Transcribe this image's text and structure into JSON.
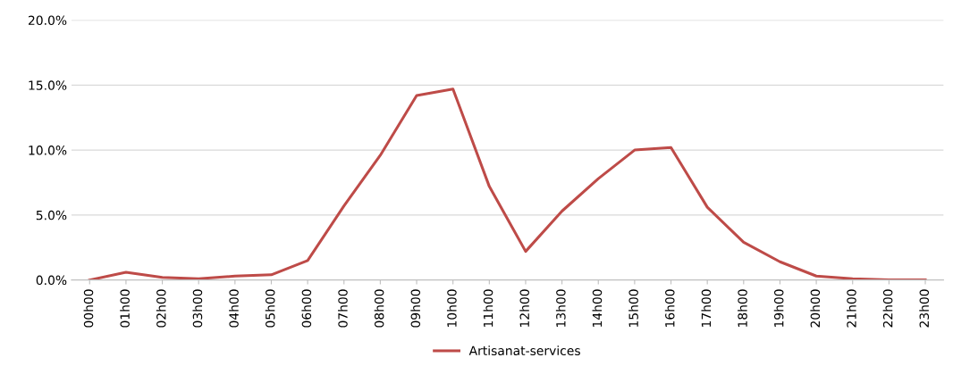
{
  "chart_data": {
    "type": "line",
    "categories": [
      "00h00",
      "01h00",
      "02h00",
      "03h00",
      "04h00",
      "05h00",
      "06h00",
      "07h00",
      "08h00",
      "09h00",
      "10h00",
      "11h00",
      "12h00",
      "13h00",
      "14h00",
      "15h00",
      "16h00",
      "17h00",
      "18h00",
      "19h00",
      "20h00",
      "21h00",
      "22h00",
      "23h00"
    ],
    "series": [
      {
        "name": "Artisanat-services",
        "color": "#be4b48",
        "values": [
          0.0,
          0.6,
          0.2,
          0.1,
          0.3,
          0.4,
          1.5,
          5.7,
          9.6,
          14.2,
          14.7,
          7.2,
          2.2,
          5.3,
          7.8,
          10.0,
          10.2,
          5.6,
          2.9,
          1.4,
          0.3,
          0.1,
          0.0,
          0.0
        ]
      }
    ],
    "ylim": [
      0,
      20
    ],
    "yticks": [
      {
        "value": 0,
        "label": "0.0%"
      },
      {
        "value": 5,
        "label": "5.0%"
      },
      {
        "value": 10,
        "label": "10.0%"
      },
      {
        "value": 15,
        "label": "15.0%"
      },
      {
        "value": 20,
        "label": "20.0%"
      }
    ],
    "grid": "y",
    "legend": "bottom",
    "marker": "none",
    "line_style": "solid"
  }
}
